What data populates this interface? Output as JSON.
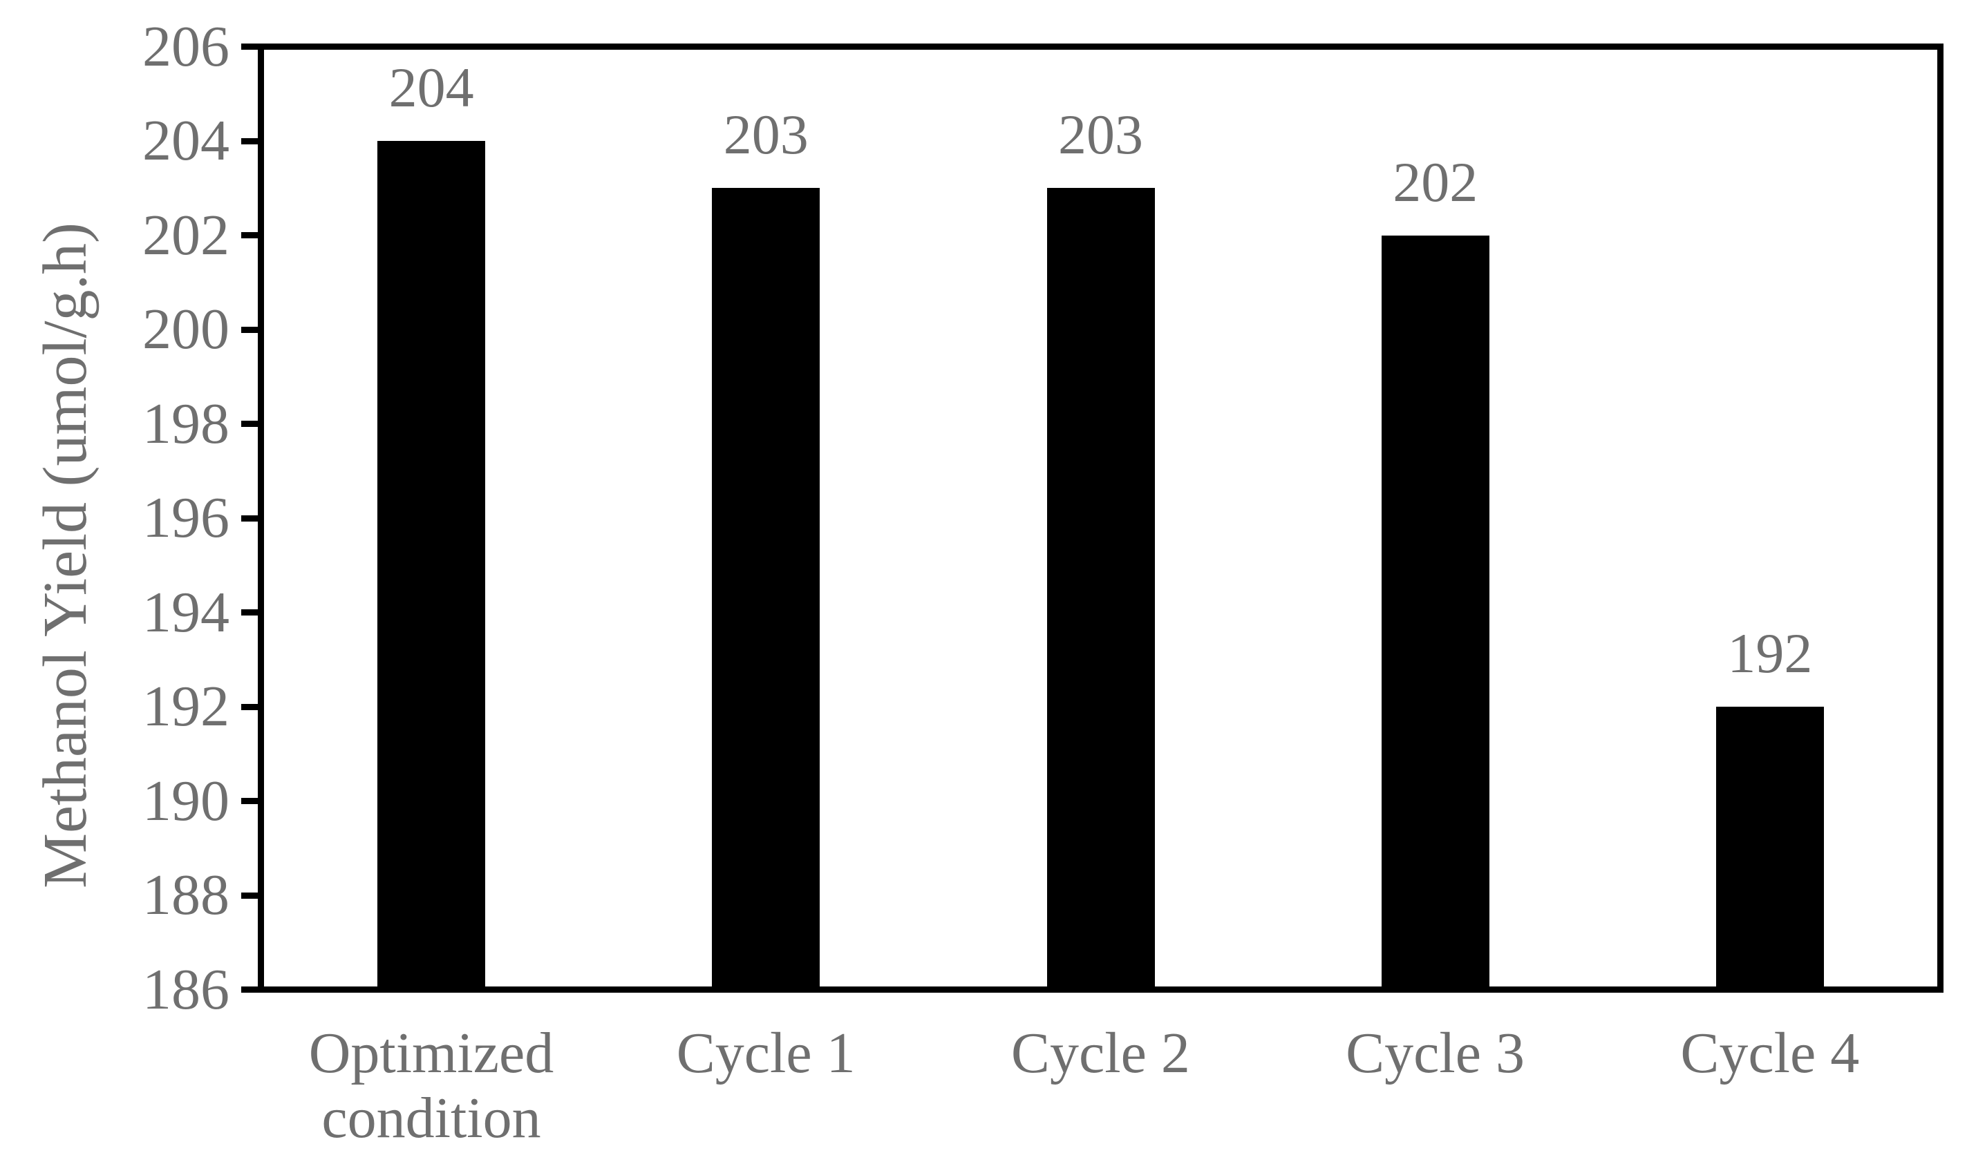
{
  "chart_data": {
    "type": "bar",
    "title": "",
    "categories": [
      "Optimized condition",
      "Cycle 1",
      "Cycle 2",
      "Cycle 3",
      "Cycle 4"
    ],
    "values": [
      204,
      203,
      203,
      202,
      192
    ],
    "data_labels": [
      "204",
      "203",
      "203",
      "202",
      "192"
    ],
    "xlabel": "",
    "ylabel": "Methanol Yield (umol/g.h)",
    "ylim": [
      186,
      206
    ],
    "ytick_step": 2,
    "yticks": [
      206,
      204,
      202,
      200,
      198,
      196,
      194,
      192,
      190,
      188,
      186
    ],
    "grid": "off",
    "legend": "none",
    "colors": {
      "bar": "#000000",
      "axis": "#000000",
      "text": "#6f6f6f",
      "background": "#ffffff"
    }
  }
}
